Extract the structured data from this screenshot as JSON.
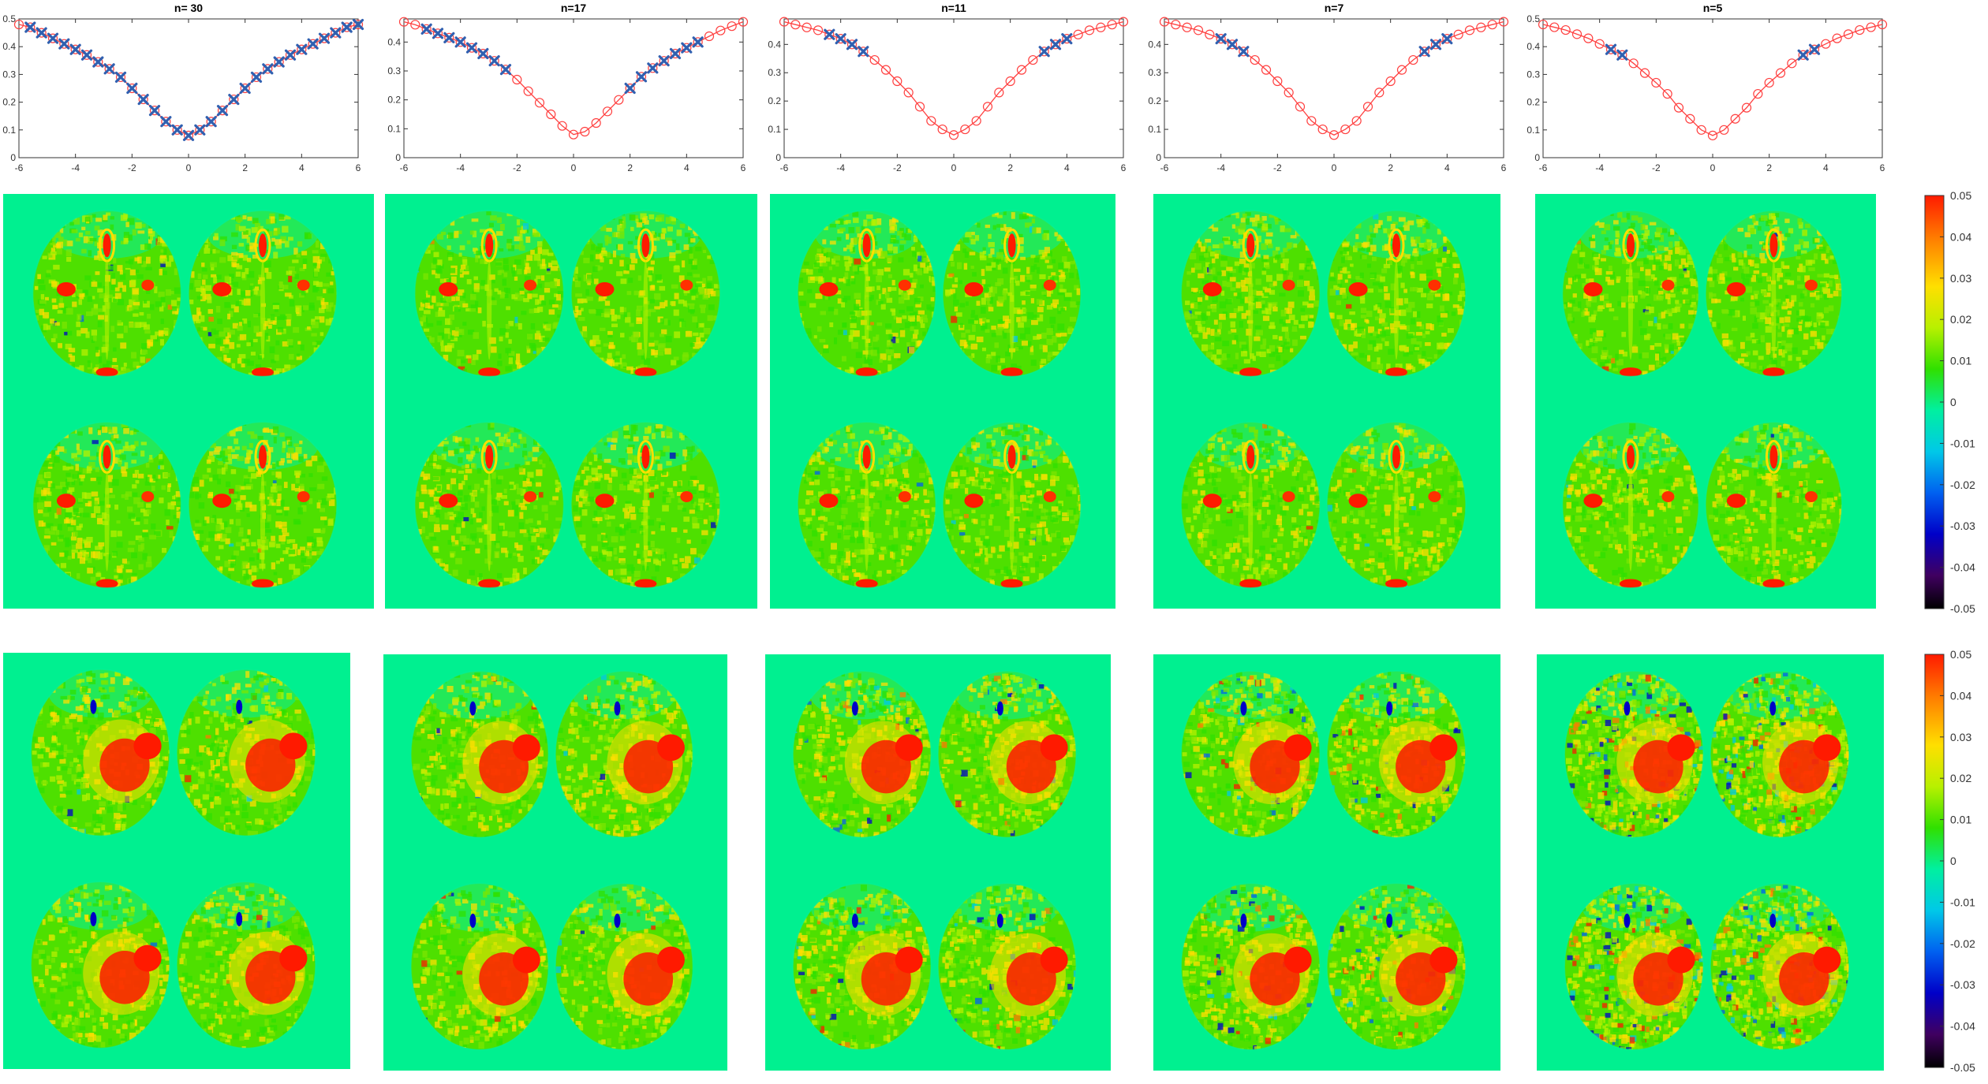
{
  "chart_data": [
    {
      "type": "line",
      "title": "n= 30",
      "xlim": [
        -6,
        6
      ],
      "ylim": [
        0,
        0.5
      ],
      "xticks": [
        "-6",
        "-4",
        "-2",
        "0",
        "2",
        "4",
        "6"
      ],
      "yticks": [
        "0",
        "0.1",
        "0.2",
        "0.3",
        "0.4",
        "0.5"
      ],
      "series": [
        {
          "marker": "circle",
          "color": "#ff4040",
          "x": [
            -6,
            -5.6,
            -5.2,
            -4.8,
            -4.4,
            -4,
            -3.6,
            -3.2,
            -2.8,
            -2.4,
            -2,
            -1.6,
            -1.2,
            -0.8,
            -0.4,
            0,
            0.4,
            0.8,
            1.2,
            1.6,
            2,
            2.4,
            2.8,
            3.2,
            3.6,
            4,
            4.4,
            4.8,
            5.2,
            5.6,
            6
          ],
          "y": [
            0.48,
            0.47,
            0.45,
            0.43,
            0.41,
            0.39,
            0.37,
            0.345,
            0.32,
            0.29,
            0.25,
            0.21,
            0.17,
            0.13,
            0.1,
            0.08,
            0.1,
            0.13,
            0.17,
            0.21,
            0.25,
            0.29,
            0.32,
            0.345,
            0.37,
            0.39,
            0.41,
            0.43,
            0.45,
            0.47,
            0.48
          ]
        },
        {
          "marker": "x",
          "color": "#3060b0",
          "x": [
            -5.6,
            -5.2,
            -4.8,
            -4.4,
            -4,
            -3.6,
            -3.2,
            -2.8,
            -2.4,
            -2,
            -1.6,
            -1.2,
            -0.8,
            -0.4,
            0,
            0.4,
            0.8,
            1.2,
            1.6,
            2,
            2.4,
            2.8,
            3.2,
            3.6,
            4,
            4.4,
            4.8,
            5.2,
            5.6,
            6
          ],
          "y": [
            0.47,
            0.45,
            0.43,
            0.41,
            0.39,
            0.37,
            0.345,
            0.32,
            0.29,
            0.25,
            0.21,
            0.17,
            0.13,
            0.1,
            0.08,
            0.1,
            0.13,
            0.17,
            0.21,
            0.25,
            0.29,
            0.32,
            0.345,
            0.37,
            0.39,
            0.41,
            0.43,
            0.45,
            0.47,
            0.48
          ]
        }
      ]
    },
    {
      "type": "line",
      "title": "n=17",
      "xlim": [
        -6,
        6
      ],
      "ylim": [
        0,
        0.48
      ],
      "xticks": [
        "-6",
        "-4",
        "-2",
        "0",
        "2",
        "4",
        "6"
      ],
      "yticks": [
        "0",
        "0.1",
        "0.2",
        "0.3",
        "0.4"
      ],
      "series": [
        {
          "marker": "circle",
          "color": "#ff4040",
          "x": [
            -6,
            -5.6,
            -5.2,
            -4.8,
            -4.4,
            -4,
            -3.6,
            -3.2,
            -2.8,
            -2.4,
            -2,
            -1.6,
            -1.2,
            -0.8,
            -0.4,
            0,
            0.4,
            0.8,
            1.2,
            1.6,
            2,
            2.4,
            2.8,
            3.2,
            3.6,
            4,
            4.4,
            4.8,
            5.2,
            5.6,
            6
          ],
          "y": [
            0.47,
            0.46,
            0.445,
            0.43,
            0.415,
            0.4,
            0.38,
            0.36,
            0.335,
            0.305,
            0.27,
            0.23,
            0.19,
            0.15,
            0.11,
            0.08,
            0.09,
            0.12,
            0.16,
            0.2,
            0.24,
            0.28,
            0.31,
            0.335,
            0.36,
            0.38,
            0.4,
            0.42,
            0.44,
            0.455,
            0.47
          ]
        },
        {
          "marker": "x",
          "color": "#3060b0",
          "x": [
            -5.2,
            -4.8,
            -4.4,
            -4,
            -3.6,
            -3.2,
            -2.8,
            -2.4,
            2,
            2.4,
            2.8,
            3.2,
            3.6,
            4,
            4.4
          ],
          "y": [
            0.445,
            0.43,
            0.415,
            0.4,
            0.38,
            0.36,
            0.335,
            0.305,
            0.24,
            0.28,
            0.31,
            0.335,
            0.36,
            0.38,
            0.4
          ]
        }
      ]
    },
    {
      "type": "line",
      "title": "n=11",
      "xlim": [
        -6,
        6
      ],
      "ylim": [
        0,
        0.49
      ],
      "xticks": [
        "-6",
        "-4",
        "-2",
        "0",
        "2",
        "4",
        "6"
      ],
      "yticks": [
        "0",
        "0.1",
        "0.2",
        "0.3",
        "0.4"
      ],
      "series": [
        {
          "marker": "circle",
          "color": "#ff4040",
          "x": [
            -6,
            -5.6,
            -5.2,
            -4.8,
            -4.4,
            -4,
            -3.6,
            -3.2,
            -2.8,
            -2.4,
            -2,
            -1.6,
            -1.2,
            -0.8,
            -0.4,
            0,
            0.4,
            0.8,
            1.2,
            1.6,
            2,
            2.4,
            2.8,
            3.2,
            3.6,
            4,
            4.4,
            4.8,
            5.2,
            5.6,
            6
          ],
          "y": [
            0.48,
            0.47,
            0.46,
            0.45,
            0.435,
            0.42,
            0.4,
            0.375,
            0.345,
            0.31,
            0.27,
            0.23,
            0.18,
            0.13,
            0.1,
            0.08,
            0.1,
            0.13,
            0.18,
            0.23,
            0.27,
            0.31,
            0.345,
            0.375,
            0.4,
            0.42,
            0.435,
            0.45,
            0.46,
            0.47,
            0.48
          ]
        },
        {
          "marker": "x",
          "color": "#3060b0",
          "x": [
            -4.4,
            -4,
            -3.6,
            -3.2,
            3.2,
            3.6,
            4
          ],
          "y": [
            0.435,
            0.42,
            0.4,
            0.375,
            0.375,
            0.4,
            0.42
          ]
        }
      ]
    },
    {
      "type": "line",
      "title": "n=7",
      "xlim": [
        -6,
        6
      ],
      "ylim": [
        0,
        0.49
      ],
      "xticks": [
        "-6",
        "-4",
        "-2",
        "0",
        "2",
        "4",
        "6"
      ],
      "yticks": [
        "0",
        "0.1",
        "0.2",
        "0.3",
        "0.4"
      ],
      "series": [
        {
          "marker": "circle",
          "color": "#ff4040",
          "x": [
            -6,
            -5.6,
            -5.2,
            -4.8,
            -4.4,
            -4,
            -3.6,
            -3.2,
            -2.8,
            -2.4,
            -2,
            -1.6,
            -1.2,
            -0.8,
            -0.4,
            0,
            0.4,
            0.8,
            1.2,
            1.6,
            2,
            2.4,
            2.8,
            3.2,
            3.6,
            4,
            4.4,
            4.8,
            5.2,
            5.6,
            6
          ],
          "y": [
            0.48,
            0.47,
            0.46,
            0.45,
            0.435,
            0.42,
            0.4,
            0.375,
            0.345,
            0.31,
            0.27,
            0.23,
            0.18,
            0.13,
            0.1,
            0.08,
            0.1,
            0.13,
            0.18,
            0.23,
            0.27,
            0.31,
            0.345,
            0.375,
            0.4,
            0.42,
            0.435,
            0.45,
            0.46,
            0.47,
            0.48
          ]
        },
        {
          "marker": "x",
          "color": "#3060b0",
          "x": [
            -4,
            -3.6,
            -3.2,
            3.2,
            3.6,
            4
          ],
          "y": [
            0.42,
            0.4,
            0.375,
            0.375,
            0.4,
            0.42
          ]
        }
      ]
    },
    {
      "type": "line",
      "title": "n=5",
      "xlim": [
        -6,
        6
      ],
      "ylim": [
        0,
        0.5
      ],
      "xticks": [
        "-6",
        "-4",
        "-2",
        "0",
        "2",
        "4",
        "6"
      ],
      "yticks": [
        "0",
        "0.1",
        "0.2",
        "0.3",
        "0.4",
        "0.5"
      ],
      "series": [
        {
          "marker": "circle",
          "color": "#ff4040",
          "x": [
            -6,
            -5.6,
            -5.2,
            -4.8,
            -4.4,
            -4,
            -3.6,
            -3.2,
            -2.8,
            -2.4,
            -2,
            -1.6,
            -1.2,
            -0.8,
            -0.4,
            0,
            0.4,
            0.8,
            1.2,
            1.6,
            2,
            2.4,
            2.8,
            3.2,
            3.6,
            4,
            4.4,
            4.8,
            5.2,
            5.6,
            6
          ],
          "y": [
            0.48,
            0.47,
            0.46,
            0.445,
            0.43,
            0.41,
            0.39,
            0.37,
            0.34,
            0.305,
            0.27,
            0.23,
            0.18,
            0.14,
            0.1,
            0.08,
            0.1,
            0.14,
            0.18,
            0.23,
            0.27,
            0.305,
            0.34,
            0.37,
            0.39,
            0.41,
            0.43,
            0.445,
            0.46,
            0.47,
            0.48
          ]
        },
        {
          "marker": "x",
          "color": "#3060b0",
          "x": [
            -3.6,
            -3.2,
            3.2,
            3.6
          ],
          "y": [
            0.39,
            0.37,
            0.37,
            0.39
          ]
        }
      ]
    },
    {
      "type": "heatmap",
      "colorbar": {
        "range": [
          -0.05,
          0.05
        ],
        "ticks": [
          "0.05",
          "0.04",
          "0.03",
          "0.02",
          "0.01",
          "0",
          "-0.01",
          "-0.02",
          "-0.03",
          "-0.04",
          "-0.05"
        ]
      }
    },
    {
      "type": "heatmap",
      "colorbar": {
        "range": [
          -0.05,
          0.05
        ],
        "ticks": [
          "0.05",
          "0.04",
          "0.03",
          "0.02",
          "0.01",
          "0",
          "-0.01",
          "-0.02",
          "-0.03",
          "-0.04",
          "-0.05"
        ]
      }
    }
  ],
  "colors": {
    "map_background": "#00f090",
    "tissue": "#4ee000",
    "lesion": "#ff2000",
    "negative": "#0000c0",
    "curve": "#ff4040",
    "selected": "#3060b0"
  }
}
